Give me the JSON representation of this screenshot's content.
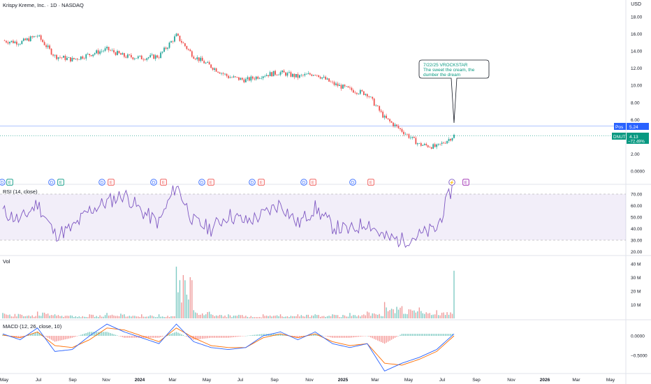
{
  "header": {
    "title": "Krispy Kreme, Inc. · 1D · NASDAQ",
    "currency": "USD"
  },
  "panes": {
    "rsi_label": "RSI (14, close)",
    "vol_label": "Vol",
    "macd_label": "MACD (12, 26, close, 10)"
  },
  "colors": {
    "up": "#26a69a",
    "down": "#ef5350",
    "rsi": "#7e57c2",
    "macd": "#2962ff",
    "signal": "#ff6d00",
    "pos_badge": "#2962ff",
    "price_badge": "#089981"
  },
  "price_axis": [
    "18.00",
    "16.00",
    "14.00",
    "12.00",
    "10.00",
    "8.00",
    "6.00",
    "4.00",
    "2.00",
    "0.0000"
  ],
  "rsi_axis": [
    "70.00",
    "60.00",
    "50.00",
    "40.00",
    "30.00",
    "20.00"
  ],
  "vol_axis": [
    "40 M",
    "30 M",
    "20 M",
    "10 M"
  ],
  "macd_axis": [
    "0.0000",
    "−0.5000"
  ],
  "badges": {
    "pos_label": "Pos",
    "pos_value": "5.24",
    "symbol": "DNUT",
    "price": "4.13",
    "change": "−72.49%"
  },
  "annotation": {
    "line1": "7/22/25 VROCKSTAR",
    "line2": "The sweet the cream, the",
    "line3": "dumber the dream"
  },
  "x_axis": [
    "May",
    "Jul",
    "Sep",
    "Nov",
    "2024",
    "Mar",
    "May",
    "Jul",
    "Sep",
    "Nov",
    "2025",
    "Mar",
    "May",
    "Jul",
    "Sep",
    "Nov",
    "2026",
    "Mar",
    "May"
  ],
  "events": [
    "D",
    "E",
    "D",
    "E",
    "D",
    "E",
    "D",
    "E",
    "D",
    "E",
    "D",
    "E",
    "D",
    "E",
    "D",
    "E",
    "⚡",
    "E"
  ],
  "chart_data": {
    "type": "line",
    "note_units": "price in USD; rsi 0-100; volume in millions; macd in USD",
    "price": {
      "dates": [
        "2023-05",
        "2023-06",
        "2023-07",
        "2023-08",
        "2023-09",
        "2023-10",
        "2023-11",
        "2023-12",
        "2024-01",
        "2024-02",
        "2024-03",
        "2024-04",
        "2024-05",
        "2024-06",
        "2024-07",
        "2024-08",
        "2024-09",
        "2024-10",
        "2024-11",
        "2024-12",
        "2025-01",
        "2025-02",
        "2025-03",
        "2025-04",
        "2025-05",
        "2025-06",
        "2025-07"
      ],
      "close": [
        15.2,
        15.0,
        15.8,
        13.4,
        13.0,
        13.6,
        14.2,
        13.4,
        13.2,
        13.4,
        15.8,
        13.4,
        12.2,
        11.0,
        10.6,
        11.2,
        11.5,
        11.0,
        11.4,
        10.2,
        9.5,
        9.0,
        6.2,
        4.7,
        3.1,
        2.8,
        4.13
      ]
    },
    "rsi": {
      "values": [
        55,
        47,
        62,
        35,
        40,
        56,
        63,
        70,
        55,
        45,
        78,
        46,
        40,
        52,
        46,
        52,
        62,
        44,
        58,
        42,
        38,
        46,
        32,
        30,
        34,
        40,
        80
      ],
      "upper": 70,
      "lower": 30
    },
    "volume_millions": [
      4,
      3,
      5,
      3,
      2,
      3,
      4,
      3,
      3,
      3,
      38,
      6,
      3,
      3,
      2,
      3,
      3,
      3,
      3,
      3,
      4,
      5,
      12,
      9,
      8,
      6,
      35
    ],
    "macd": {
      "macd": [
        0.05,
        -0.1,
        0.2,
        -0.4,
        -0.35,
        0.0,
        0.3,
        0.1,
        -0.05,
        -0.2,
        0.3,
        -0.15,
        -0.3,
        -0.35,
        -0.3,
        0.0,
        0.1,
        -0.1,
        0.1,
        -0.2,
        -0.3,
        -0.2,
        -0.9,
        -0.7,
        -0.55,
        -0.35,
        0.05
      ],
      "signal": [
        0.02,
        -0.05,
        0.1,
        -0.25,
        -0.3,
        -0.1,
        0.2,
        0.15,
        0.0,
        -0.15,
        0.2,
        -0.05,
        -0.25,
        -0.3,
        -0.3,
        -0.05,
        0.05,
        -0.05,
        0.05,
        -0.15,
        -0.25,
        -0.2,
        -0.7,
        -0.75,
        -0.6,
        -0.4,
        0.0
      ]
    },
    "position_line": 5.24,
    "last_price": 4.13,
    "ylim": [
      0,
      19
    ]
  }
}
